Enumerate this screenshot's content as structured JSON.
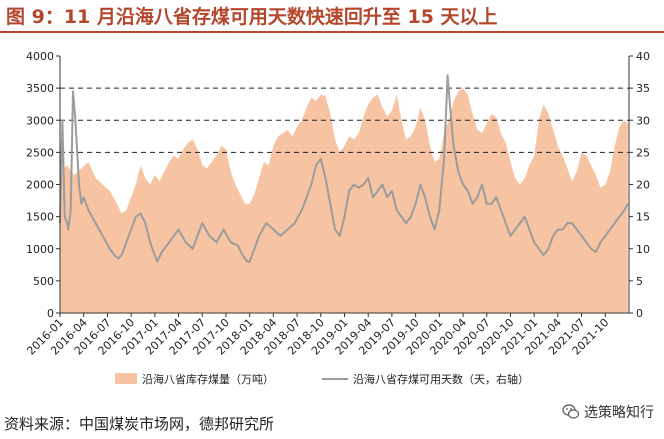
{
  "figure": {
    "title": "图 9：11 月沿海八省存煤可用天数快速回升至 15 天以上",
    "source": "资料来源：中国煤炭市场网，德邦研究所",
    "watermark": "选策略知行"
  },
  "chart_data": {
    "type": "area+line",
    "x_labels": [
      "2016-01",
      "2016-04",
      "2016-07",
      "2016-10",
      "2017-01",
      "2017-04",
      "2017-07",
      "2017-10",
      "2018-01",
      "2018-04",
      "2018-07",
      "2018-10",
      "2019-01",
      "2019-04",
      "2019-07",
      "2019-10",
      "2020-01",
      "2020-04",
      "2020-07",
      "2020-10",
      "2021-01",
      "2021-04",
      "2021-07",
      "2021-10"
    ],
    "left_axis": {
      "min": 0,
      "max": 4000,
      "ticks": [
        0,
        500,
        1000,
        1500,
        2000,
        2500,
        3000,
        3500,
        4000
      ]
    },
    "right_axis": {
      "min": 0,
      "max": 40,
      "ticks": [
        0,
        5,
        10,
        15,
        20,
        25,
        30,
        35,
        40
      ]
    },
    "gridlines_right": [
      25,
      30,
      35
    ],
    "series": [
      {
        "name": "沿海八省库存煤量（万吨）",
        "axis": "left",
        "kind": "area",
        "color": "#f7c4a3",
        "points": [
          [
            0,
            2200
          ],
          [
            0.3,
            2300
          ],
          [
            0.6,
            2150
          ],
          [
            0.9,
            2250
          ],
          [
            1.2,
            2350
          ],
          [
            1.5,
            2100
          ],
          [
            1.8,
            2000
          ],
          [
            2.1,
            1900
          ],
          [
            2.4,
            1700
          ],
          [
            2.6,
            1550
          ],
          [
            2.8,
            1600
          ],
          [
            3.0,
            1800
          ],
          [
            3.2,
            2000
          ],
          [
            3.4,
            2300
          ],
          [
            3.6,
            2100
          ],
          [
            3.8,
            2000
          ],
          [
            4.0,
            2150
          ],
          [
            4.2,
            2050
          ],
          [
            4.4,
            2200
          ],
          [
            4.6,
            2350
          ],
          [
            4.8,
            2450
          ],
          [
            5.0,
            2400
          ],
          [
            5.2,
            2550
          ],
          [
            5.4,
            2650
          ],
          [
            5.6,
            2700
          ],
          [
            5.8,
            2550
          ],
          [
            6.0,
            2300
          ],
          [
            6.2,
            2250
          ],
          [
            6.4,
            2350
          ],
          [
            6.6,
            2450
          ],
          [
            6.8,
            2600
          ],
          [
            7.0,
            2550
          ],
          [
            7.2,
            2200
          ],
          [
            7.4,
            2000
          ],
          [
            7.6,
            1850
          ],
          [
            7.8,
            1700
          ],
          [
            8.0,
            1700
          ],
          [
            8.2,
            1850
          ],
          [
            8.4,
            2100
          ],
          [
            8.6,
            2350
          ],
          [
            8.8,
            2300
          ],
          [
            9.0,
            2600
          ],
          [
            9.2,
            2750
          ],
          [
            9.4,
            2800
          ],
          [
            9.6,
            2850
          ],
          [
            9.8,
            2750
          ],
          [
            10.0,
            2900
          ],
          [
            10.2,
            3000
          ],
          [
            10.4,
            3200
          ],
          [
            10.6,
            3350
          ],
          [
            10.8,
            3300
          ],
          [
            11.0,
            3400
          ],
          [
            11.2,
            3380
          ],
          [
            11.4,
            3100
          ],
          [
            11.6,
            2700
          ],
          [
            11.8,
            2500
          ],
          [
            12.0,
            2600
          ],
          [
            12.2,
            2750
          ],
          [
            12.4,
            2700
          ],
          [
            12.6,
            2800
          ],
          [
            12.8,
            3050
          ],
          [
            13.0,
            3250
          ],
          [
            13.2,
            3350
          ],
          [
            13.4,
            3400
          ],
          [
            13.6,
            3200
          ],
          [
            13.8,
            3050
          ],
          [
            14.0,
            3150
          ],
          [
            14.2,
            3400
          ],
          [
            14.4,
            3000
          ],
          [
            14.6,
            2700
          ],
          [
            14.8,
            2750
          ],
          [
            15.0,
            2900
          ],
          [
            15.2,
            3200
          ],
          [
            15.4,
            3000
          ],
          [
            15.6,
            2600
          ],
          [
            15.8,
            2350
          ],
          [
            16.0,
            2400
          ],
          [
            16.2,
            2800
          ],
          [
            16.4,
            3000
          ],
          [
            16.6,
            3300
          ],
          [
            16.8,
            3450
          ],
          [
            17.0,
            3500
          ],
          [
            17.2,
            3400
          ],
          [
            17.4,
            3100
          ],
          [
            17.6,
            2850
          ],
          [
            17.8,
            2800
          ],
          [
            18.0,
            2950
          ],
          [
            18.2,
            3100
          ],
          [
            18.4,
            3050
          ],
          [
            18.6,
            2800
          ],
          [
            18.8,
            2650
          ],
          [
            19.0,
            2350
          ],
          [
            19.2,
            2100
          ],
          [
            19.4,
            2000
          ],
          [
            19.6,
            2100
          ],
          [
            19.8,
            2300
          ],
          [
            20.0,
            2450
          ],
          [
            20.2,
            3000
          ],
          [
            20.4,
            3250
          ],
          [
            20.6,
            3100
          ],
          [
            20.8,
            2850
          ],
          [
            21.0,
            2600
          ],
          [
            21.2,
            2450
          ],
          [
            21.4,
            2250
          ],
          [
            21.6,
            2050
          ],
          [
            21.8,
            2200
          ],
          [
            22.0,
            2500
          ],
          [
            22.2,
            2450
          ],
          [
            22.4,
            2300
          ],
          [
            22.6,
            2150
          ],
          [
            22.8,
            1950
          ],
          [
            23.0,
            2000
          ],
          [
            23.2,
            2200
          ],
          [
            23.4,
            2600
          ],
          [
            23.6,
            2900
          ],
          [
            23.8,
            3000
          ],
          [
            23.95,
            2950
          ]
        ]
      },
      {
        "name": "沿海八省存煤可用天数（天，右轴）",
        "axis": "right",
        "kind": "line",
        "color": "#9c9c9c",
        "points": [
          [
            0,
            14
          ],
          [
            0.1,
            30
          ],
          [
            0.2,
            15
          ],
          [
            0.3,
            14
          ],
          [
            0.35,
            13
          ],
          [
            0.45,
            16
          ],
          [
            0.55,
            34.5
          ],
          [
            0.65,
            30
          ],
          [
            0.8,
            20
          ],
          [
            0.9,
            17
          ],
          [
            1.0,
            18
          ],
          [
            1.2,
            16
          ],
          [
            1.5,
            14
          ],
          [
            1.8,
            12
          ],
          [
            2.1,
            10
          ],
          [
            2.3,
            9
          ],
          [
            2.45,
            8.5
          ],
          [
            2.6,
            9
          ],
          [
            2.8,
            11
          ],
          [
            3.0,
            13
          ],
          [
            3.2,
            15
          ],
          [
            3.4,
            15.5
          ],
          [
            3.6,
            14
          ],
          [
            3.8,
            11
          ],
          [
            4.0,
            9
          ],
          [
            4.1,
            8
          ],
          [
            4.3,
            9.5
          ],
          [
            4.6,
            11
          ],
          [
            5.0,
            13
          ],
          [
            5.3,
            11
          ],
          [
            5.6,
            10
          ],
          [
            5.8,
            12
          ],
          [
            6.0,
            14
          ],
          [
            6.3,
            12
          ],
          [
            6.6,
            11
          ],
          [
            6.9,
            13
          ],
          [
            7.2,
            11
          ],
          [
            7.5,
            10.5
          ],
          [
            7.7,
            9
          ],
          [
            7.9,
            8
          ],
          [
            8.0,
            8
          ],
          [
            8.2,
            10
          ],
          [
            8.4,
            12
          ],
          [
            8.7,
            14
          ],
          [
            9.0,
            13
          ],
          [
            9.3,
            12
          ],
          [
            9.6,
            13
          ],
          [
            9.9,
            14
          ],
          [
            10.2,
            16
          ],
          [
            10.4,
            18
          ],
          [
            10.6,
            20
          ],
          [
            10.8,
            23
          ],
          [
            11.0,
            24
          ],
          [
            11.2,
            21
          ],
          [
            11.4,
            17
          ],
          [
            11.6,
            13
          ],
          [
            11.8,
            12
          ],
          [
            12.0,
            15
          ],
          [
            12.2,
            19
          ],
          [
            12.4,
            20
          ],
          [
            12.6,
            19.5
          ],
          [
            12.8,
            20
          ],
          [
            13.0,
            21
          ],
          [
            13.2,
            18
          ],
          [
            13.4,
            19
          ],
          [
            13.6,
            20
          ],
          [
            13.8,
            18
          ],
          [
            14.0,
            19
          ],
          [
            14.2,
            16
          ],
          [
            14.4,
            15
          ],
          [
            14.6,
            14
          ],
          [
            14.8,
            15
          ],
          [
            15.0,
            17
          ],
          [
            15.2,
            20
          ],
          [
            15.4,
            18
          ],
          [
            15.6,
            15
          ],
          [
            15.8,
            13
          ],
          [
            16.0,
            16
          ],
          [
            16.2,
            24
          ],
          [
            16.35,
            37
          ],
          [
            16.5,
            30
          ],
          [
            16.6,
            26
          ],
          [
            16.8,
            22
          ],
          [
            17.0,
            20
          ],
          [
            17.2,
            19
          ],
          [
            17.4,
            17
          ],
          [
            17.6,
            18
          ],
          [
            17.8,
            20
          ],
          [
            18.0,
            17
          ],
          [
            18.2,
            17
          ],
          [
            18.4,
            18
          ],
          [
            18.6,
            16
          ],
          [
            18.8,
            14
          ],
          [
            19.0,
            12
          ],
          [
            19.2,
            13
          ],
          [
            19.4,
            14
          ],
          [
            19.6,
            15
          ],
          [
            19.8,
            13
          ],
          [
            20.0,
            11
          ],
          [
            20.2,
            10
          ],
          [
            20.4,
            9
          ],
          [
            20.6,
            10
          ],
          [
            20.8,
            12
          ],
          [
            21.0,
            13
          ],
          [
            21.2,
            13
          ],
          [
            21.4,
            14
          ],
          [
            21.6,
            14
          ],
          [
            21.8,
            13
          ],
          [
            22.0,
            12
          ],
          [
            22.2,
            11
          ],
          [
            22.4,
            10
          ],
          [
            22.6,
            9.5
          ],
          [
            22.8,
            11
          ],
          [
            23.0,
            12
          ],
          [
            23.2,
            13
          ],
          [
            23.4,
            14
          ],
          [
            23.6,
            15
          ],
          [
            23.8,
            16
          ],
          [
            23.95,
            17
          ]
        ]
      }
    ]
  }
}
